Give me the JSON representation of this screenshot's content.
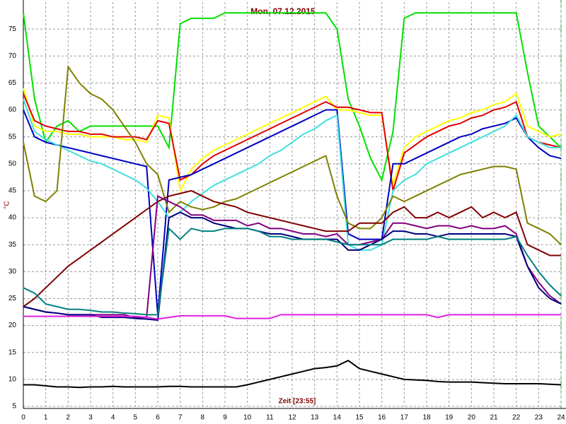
{
  "chart_data": {
    "type": "line",
    "title": "Mon, 07.12.2015",
    "xlabel": "Zeit [23:55]",
    "ylabel": "°C",
    "x": [
      0,
      0.5,
      1,
      1.5,
      2,
      2.5,
      3,
      3.5,
      4,
      4.5,
      5,
      5.5,
      6,
      6.5,
      7,
      7.5,
      8,
      8.5,
      9,
      9.5,
      10,
      10.5,
      11,
      11.5,
      12,
      12.5,
      13,
      13.5,
      14,
      14.5,
      15,
      15.5,
      16,
      16.5,
      17,
      17.5,
      18,
      18.5,
      19,
      19.5,
      20,
      20.5,
      21,
      21.5,
      22,
      22.5,
      23,
      23.5,
      24
    ],
    "xlim": [
      0,
      24
    ],
    "xticks": [
      0,
      1,
      2,
      3,
      4,
      5,
      6,
      7,
      8,
      9,
      10,
      11,
      12,
      13,
      14,
      15,
      16,
      17,
      18,
      19,
      20,
      21,
      22,
      23,
      24
    ],
    "ylim": [
      5,
      80
    ],
    "yticks": [
      5,
      10,
      15,
      20,
      25,
      30,
      35,
      40,
      45,
      50,
      55,
      60,
      65,
      70,
      75
    ],
    "grid": true,
    "series": [
      {
        "color": "#00e000",
        "values": [
          78,
          62,
          54,
          57,
          58,
          56,
          57,
          57,
          57,
          57,
          57,
          57,
          57,
          53,
          76,
          77,
          77,
          77,
          78,
          78,
          78,
          78,
          78,
          78,
          78,
          78,
          78,
          78,
          75,
          62,
          57,
          51,
          47,
          56,
          77,
          78,
          78,
          78,
          78,
          78,
          78,
          78,
          78,
          78,
          78,
          67,
          57,
          55,
          53
        ]
      },
      {
        "color": "#ffff00",
        "values": [
          64,
          57,
          56,
          56,
          55.5,
          55.5,
          55,
          55,
          55,
          54.5,
          54.5,
          54,
          59,
          58.5,
          45,
          49,
          51,
          52.5,
          53.5,
          54.5,
          55.5,
          56.5,
          57.5,
          58.5,
          59.5,
          60.5,
          61.5,
          62.5,
          60,
          60,
          59.5,
          59,
          59,
          46,
          53,
          55,
          56,
          57,
          58,
          58.5,
          59.5,
          60,
          61,
          61.5,
          63,
          57,
          56,
          55,
          55.5
        ]
      },
      {
        "color": "#e00000",
        "values": [
          63,
          58,
          57,
          56.5,
          56,
          56,
          55.5,
          55.5,
          55,
          55,
          55,
          54.5,
          58,
          57.5,
          47,
          48,
          50,
          51.5,
          52.5,
          53.5,
          54.5,
          55.5,
          56.5,
          57.5,
          58.5,
          59.5,
          60.5,
          61.5,
          60.5,
          60.5,
          60,
          59.5,
          59.5,
          45,
          52,
          53.5,
          55,
          56,
          57,
          57.5,
          58.5,
          59,
          60,
          60.5,
          61.5,
          55,
          54,
          53.5,
          53
        ]
      },
      {
        "color": "#0000c0",
        "values": [
          60,
          55,
          54,
          53.5,
          53,
          52.5,
          52,
          51.5,
          51,
          50.5,
          50,
          49.5,
          22,
          47,
          47.5,
          48,
          49,
          50,
          51,
          52,
          53,
          54,
          55,
          56,
          57,
          58,
          59,
          60,
          60,
          37,
          36,
          36,
          36,
          50,
          50,
          51,
          52,
          53,
          54,
          55,
          55.5,
          56.5,
          57,
          57.5,
          58.5,
          55,
          53,
          51.5,
          51
        ]
      },
      {
        "color": "#40e0e0",
        "values": [
          62,
          56,
          54.5,
          53.5,
          52.5,
          51.5,
          50.5,
          50,
          49,
          48,
          47,
          45.5,
          43,
          40,
          41,
          43,
          44.5,
          46,
          47,
          48,
          49,
          50,
          51.5,
          52.5,
          54,
          55.5,
          56.5,
          58,
          59,
          35,
          34,
          34,
          35,
          45,
          47,
          48,
          50,
          51,
          52,
          53,
          54,
          55,
          56,
          57,
          59,
          55,
          54,
          53,
          53
        ]
      },
      {
        "color": "#808000",
        "values": [
          54,
          44,
          43,
          45,
          68,
          65,
          63,
          62,
          60,
          57,
          54,
          50,
          48,
          41,
          43,
          42,
          41.5,
          42,
          43,
          43.5,
          44.5,
          45.5,
          46.5,
          47.5,
          48.5,
          49.5,
          50.5,
          51.5,
          44,
          39,
          38,
          38,
          40,
          44,
          43,
          44,
          45,
          46,
          47,
          48,
          48.5,
          49,
          49.5,
          49.5,
          49,
          39,
          38,
          37,
          35
        ]
      },
      {
        "color": "#800000",
        "values": [
          23.5,
          25,
          27,
          29,
          31,
          32.5,
          34,
          35.5,
          37,
          38.5,
          40,
          41.5,
          43,
          44,
          44.5,
          45,
          44,
          43,
          42.5,
          42,
          41,
          40.5,
          40,
          39.5,
          39,
          38.5,
          38,
          37.5,
          37.5,
          37.5,
          39,
          39,
          39,
          41,
          42,
          40,
          40,
          41,
          40,
          41,
          42,
          40,
          41,
          40,
          41,
          35,
          34,
          33,
          33
        ]
      },
      {
        "color": "#800080",
        "values": [
          23.5,
          23,
          22.5,
          22.3,
          22,
          22,
          22,
          22,
          22,
          22,
          21.5,
          21.5,
          44,
          43,
          42,
          40.5,
          40.5,
          39.5,
          39.5,
          39.5,
          38.5,
          39,
          38,
          38,
          37.5,
          37,
          37,
          36.5,
          37,
          35,
          35,
          35.5,
          36,
          39,
          39,
          38.5,
          38,
          38.5,
          38.5,
          38,
          38.5,
          38,
          38,
          38.5,
          37,
          31,
          28,
          25.5,
          24
        ]
      },
      {
        "color": "#000080",
        "values": [
          23.5,
          23,
          22.5,
          22.3,
          22,
          22,
          22,
          21.5,
          21.5,
          21.5,
          21.3,
          21.2,
          21,
          40,
          41,
          40,
          40,
          39,
          38.5,
          38,
          38,
          37.5,
          37,
          37,
          36.5,
          36,
          36,
          36,
          36,
          34,
          34,
          35,
          36,
          37.5,
          37.5,
          37,
          37,
          36.5,
          37,
          37,
          37,
          37,
          37,
          37,
          36.5,
          31,
          27,
          25,
          24
        ]
      },
      {
        "color": "#008080",
        "values": [
          27,
          26,
          24,
          23.5,
          23,
          23,
          22.8,
          22.5,
          22.5,
          22.3,
          22.2,
          22,
          22,
          38,
          36,
          38,
          37.5,
          37.5,
          38,
          38,
          38,
          37.5,
          36.5,
          36.5,
          36,
          36,
          36,
          36,
          35.5,
          35,
          35,
          35,
          35,
          36,
          36,
          36,
          36,
          36.5,
          36,
          36,
          36,
          36,
          36,
          36,
          36.5,
          33,
          30,
          27.5,
          25.5
        ]
      },
      {
        "color": "#e020e0",
        "values": [
          21.7,
          21.7,
          21.7,
          21.7,
          21.7,
          21.7,
          21.7,
          21.7,
          21.7,
          21.7,
          21.7,
          21.5,
          21.2,
          21.5,
          21.8,
          21.8,
          21.8,
          21.8,
          21.8,
          21.3,
          21.3,
          21.3,
          21.3,
          22,
          22,
          22,
          22,
          22,
          22,
          22,
          22,
          22,
          22,
          22,
          22,
          22,
          22,
          21.5,
          22,
          22,
          22,
          22,
          22,
          22,
          22,
          22,
          22,
          22,
          22
        ]
      },
      {
        "color": "#000000",
        "values": [
          9,
          9,
          8.8,
          8.6,
          8.6,
          8.5,
          8.6,
          8.6,
          8.7,
          8.6,
          8.6,
          8.6,
          8.6,
          8.7,
          8.7,
          8.6,
          8.6,
          8.6,
          8.6,
          8.6,
          9,
          9.5,
          10,
          10.5,
          11,
          11.5,
          12,
          12.2,
          12.5,
          13.5,
          12,
          11.5,
          11,
          10.5,
          10,
          9.9,
          9.8,
          9.6,
          9.5,
          9.5,
          9.5,
          9.4,
          9.3,
          9.2,
          9.2,
          9.2,
          9.2,
          9.1,
          9
        ]
      }
    ]
  }
}
